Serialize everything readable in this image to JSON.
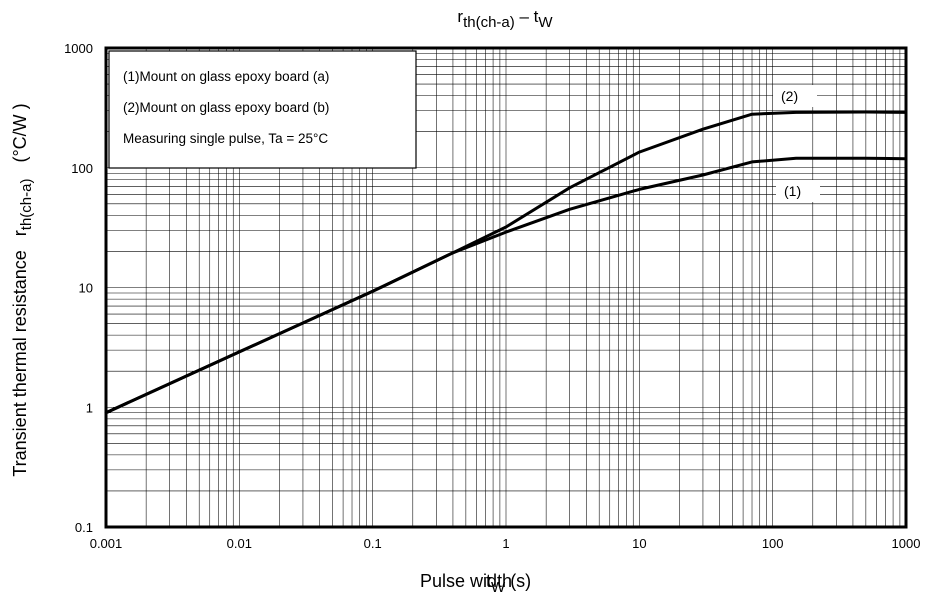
{
  "chart_data": {
    "type": "line",
    "title": {
      "main": "r",
      "main_sub": "th(ch-a)",
      "dash": " – ",
      "second": "t",
      "second_sub": "W"
    },
    "xlabel": {
      "text": "Pulse width",
      "var": "t",
      "var_sub": "W",
      "unit": "(s)"
    },
    "ylabel": {
      "text": "Transient thermal resistance",
      "var": "r",
      "var_sub": "th(ch-a)",
      "unit": "(°C/W )"
    },
    "x_scale": "log",
    "y_scale": "log",
    "xlim": [
      0.001,
      1000
    ],
    "ylim": [
      0.1,
      1000
    ],
    "x_tick_labels": [
      "0.001",
      "0.01",
      "0.1",
      "1",
      "10",
      "100",
      "1000"
    ],
    "y_tick_labels": [
      "0.1",
      "1",
      "10",
      "100",
      "1000"
    ],
    "grid": true,
    "legend": {
      "placement": "top-left",
      "lines": [
        "(1)Mount on glass epoxy board (a)",
        "(2)Mount on glass epoxy board (b)",
        "Measuring single pulse, Ta = 25°C"
      ]
    },
    "series": [
      {
        "name": "(1)",
        "x": [
          0.001,
          0.01,
          0.1,
          0.4,
          1,
          3,
          10,
          30,
          70,
          150,
          500,
          1000
        ],
        "y": [
          0.9,
          2.9,
          9.3,
          19.5,
          29,
          45,
          66,
          87,
          112,
          120,
          120,
          119
        ]
      },
      {
        "name": "(2)",
        "x": [
          0.001,
          0.01,
          0.1,
          0.4,
          1,
          3,
          10,
          30,
          70,
          150,
          500,
          1000
        ],
        "y": [
          0.9,
          2.9,
          9.3,
          19.5,
          32,
          68,
          135,
          210,
          280,
          290,
          292,
          290
        ]
      }
    ]
  }
}
